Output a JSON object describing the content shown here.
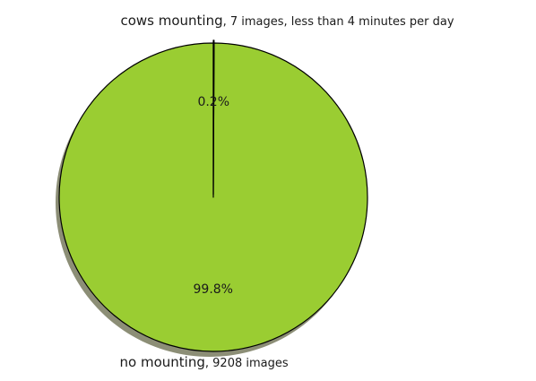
{
  "chart_data": {
    "type": "pie",
    "title": "",
    "slices": [
      {
        "label": "cows mounting",
        "detail": ", 7 images, less than 4 minutes per day",
        "value": 7,
        "percent_label": "0.2%",
        "color": "#000080",
        "exploded": true
      },
      {
        "label": "no mounting",
        "detail": ", 9208 images",
        "value": 9208,
        "percent_label": "99.8%",
        "color": "#9acd32",
        "exploded": false
      }
    ],
    "start_angle_deg": 90,
    "direction": "clockwise",
    "shadow": true,
    "legend": "none"
  }
}
